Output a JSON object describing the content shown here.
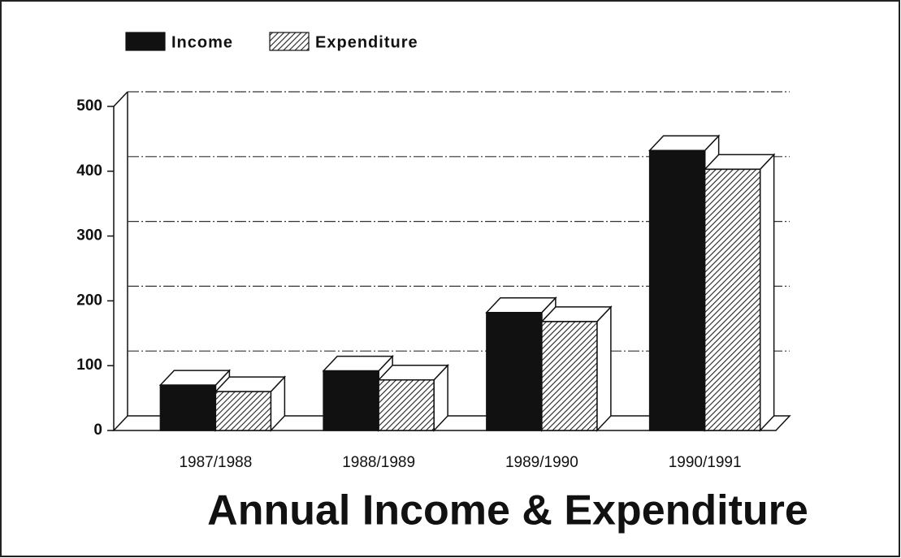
{
  "chart_data": {
    "type": "bar3d",
    "title": "Annual Income & Expenditure",
    "categories": [
      "1987/1988",
      "1988/1989",
      "1989/1990",
      "1990/1991"
    ],
    "series": [
      {
        "name": "Income",
        "color": "#111111",
        "values": [
          70,
          92,
          182,
          432
        ]
      },
      {
        "name": "Expenditure",
        "color": "#222222",
        "hatch": true,
        "values": [
          60,
          78,
          168,
          403
        ]
      }
    ],
    "ylim": [
      0,
      500
    ],
    "yticks": [
      0,
      100,
      200,
      300,
      400,
      500
    ],
    "grid": true,
    "legend": "top-left"
  }
}
